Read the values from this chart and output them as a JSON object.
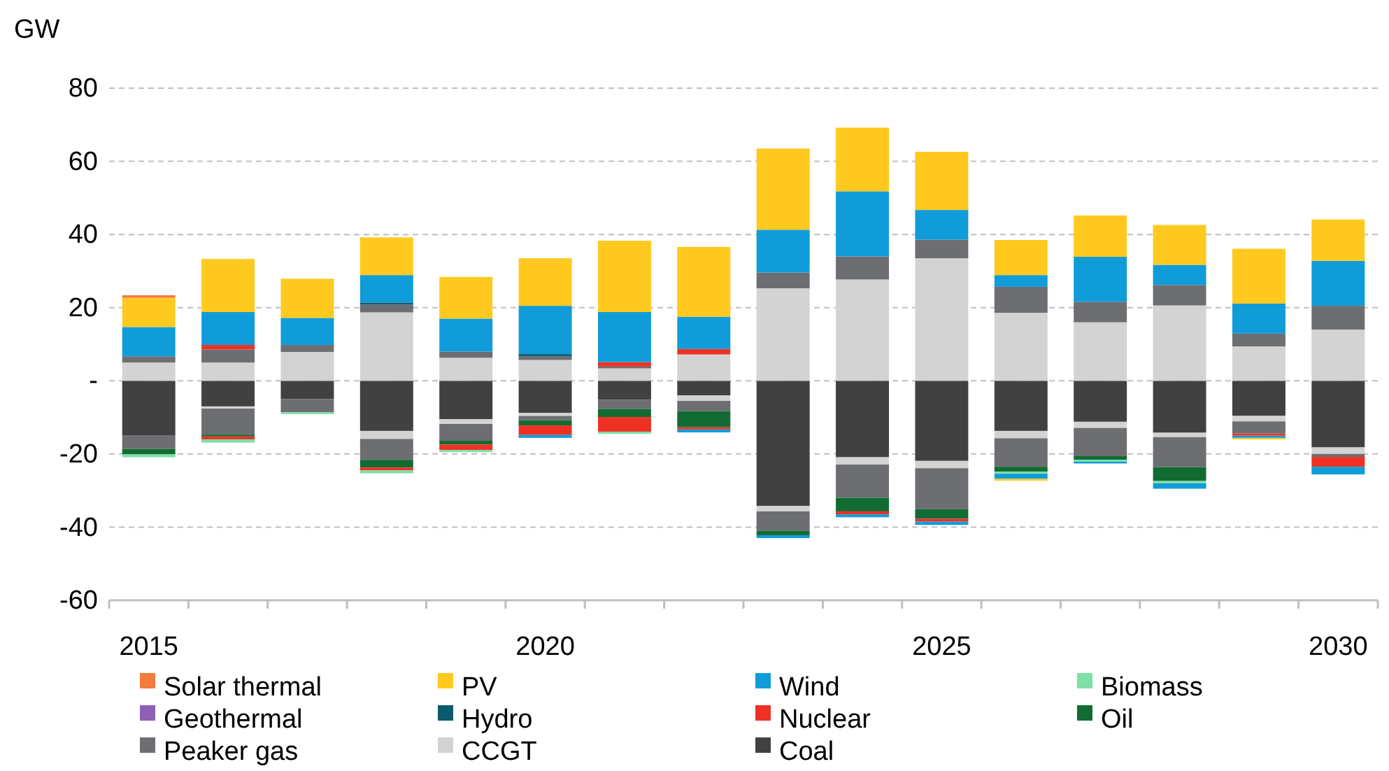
{
  "chart_data": {
    "type": "bar",
    "stacked": true,
    "ylabel": "GW",
    "categories": [
      "2015",
      null,
      null,
      null,
      null,
      "2020",
      null,
      null,
      null,
      null,
      "2025",
      null,
      null,
      null,
      null,
      "2030"
    ],
    "ylim": [
      -60,
      80
    ],
    "yticks": [
      -60,
      -40,
      -20,
      {
        "value": 0,
        "label": "-"
      },
      20,
      40,
      60,
      80
    ],
    "grid": "y",
    "legend": "bottom",
    "series": [
      {
        "name": "Coal",
        "color": "#414141",
        "values": [
          -15,
          -7,
          -5,
          -13.7,
          -10.5,
          -8.8,
          -5.2,
          -4,
          -34.2,
          -20.9,
          -21.9,
          -13.7,
          -11.2,
          -14.2,
          -9.6,
          -18.2
        ]
      },
      {
        "name": "CCGT",
        "color": "#d3d3d3",
        "values": [
          5,
          5,
          7.9,
          18.7,
          6.3,
          5.7,
          3.4,
          7.2,
          25.3,
          27.7,
          33.5,
          18.6,
          16,
          20.6,
          9.4,
          14
        ]
      },
      {
        "color": "#d3d3d3",
        "values": [
          0,
          -0.6,
          0,
          -2.2,
          -1.3,
          -0.8,
          0,
          -1.5,
          -1.5,
          -2,
          -2,
          -2,
          -1.7,
          -1.2,
          -1.5,
          -1.8
        ]
      },
      {
        "name": "Peaker gas",
        "color": "#6d6e71",
        "values": [
          1.7,
          3.6,
          1.9,
          2.1,
          1.7,
          1,
          0.5,
          0,
          4.3,
          6.3,
          5.1,
          7.1,
          5.6,
          5.6,
          3.5,
          6.5
        ]
      },
      {
        "color": "#6d6e71",
        "values": [
          -3.6,
          -7.1,
          -3.6,
          -5.7,
          -4.6,
          -1.2,
          -2.5,
          -2.8,
          -5.3,
          -9.1,
          -11.2,
          -7.8,
          -7.7,
          -8.2,
          -3.3,
          -0.8
        ]
      },
      {
        "name": "Oil",
        "color": "#116b32",
        "values": [
          -1.5,
          -0.5,
          0,
          -2.1,
          -1,
          -1.4,
          -2.2,
          -4.4,
          -1.2,
          -3.7,
          -2.6,
          -1.3,
          -1,
          -3.8,
          0,
          0
        ]
      },
      {
        "name": "Nuclear",
        "color": "#ee3124",
        "values": [
          0,
          1.2,
          0,
          0,
          0,
          0,
          1.2,
          1.5,
          0,
          0,
          0,
          0,
          0,
          0,
          0,
          0
        ]
      },
      {
        "color": "#ee3124",
        "values": [
          0,
          -0.8,
          0,
          -0.8,
          -1.5,
          -2.6,
          -4,
          -0.6,
          0,
          -0.8,
          -0.8,
          0,
          0,
          0,
          -0.6,
          -2.7
        ]
      },
      {
        "name": "Hydro",
        "color": "#0c5a6e",
        "values": [
          0,
          0,
          0,
          0.6,
          0,
          0.6,
          0,
          0,
          0,
          0,
          0,
          0,
          0,
          0,
          0,
          0
        ]
      },
      {
        "name": "Geothermal",
        "color": "#8e5fb5",
        "values": [
          0,
          0,
          0,
          0,
          0,
          0,
          0,
          0,
          0,
          0,
          0,
          0,
          0,
          0,
          0,
          0
        ]
      },
      {
        "name": "Biomass",
        "color": "#7ee0a6",
        "values": [
          -0.8,
          -0.9,
          -0.5,
          -0.8,
          -0.6,
          0,
          -0.6,
          0,
          0,
          0,
          0,
          -0.6,
          -0.5,
          -0.6,
          0,
          0
        ]
      },
      {
        "name": "Wind",
        "color": "#109cd9",
        "values": [
          8,
          9,
          7.4,
          7.5,
          9,
          13.2,
          13.7,
          8.8,
          11.7,
          17.8,
          8.1,
          3.2,
          12.3,
          5.5,
          8.2,
          12.3
        ]
      },
      {
        "color": "#109cd9",
        "values": [
          0,
          0,
          0,
          0,
          0,
          -0.8,
          0,
          -0.8,
          -0.8,
          -0.8,
          -0.9,
          -1.4,
          -0.5,
          -1.5,
          -0.6,
          -2.1
        ]
      },
      {
        "name": "PV",
        "color": "#ffc91f",
        "values": [
          8,
          14.5,
          10.7,
          10.3,
          11.4,
          13,
          19.5,
          19.1,
          22.2,
          17.4,
          15.9,
          9.6,
          11.3,
          10.9,
          15,
          11.3
        ]
      },
      {
        "color": "#ffc91f",
        "values": [
          0,
          0,
          0,
          0,
          0,
          0,
          0,
          0,
          0,
          0,
          0,
          -0.5,
          0,
          0,
          -0.4,
          0
        ]
      },
      {
        "name": "Solar thermal",
        "color": "#f47c3c",
        "values": [
          0.7,
          0,
          0,
          0,
          0,
          0,
          0,
          0,
          0,
          0,
          0,
          0,
          0,
          0,
          0,
          0
        ]
      }
    ]
  }
}
